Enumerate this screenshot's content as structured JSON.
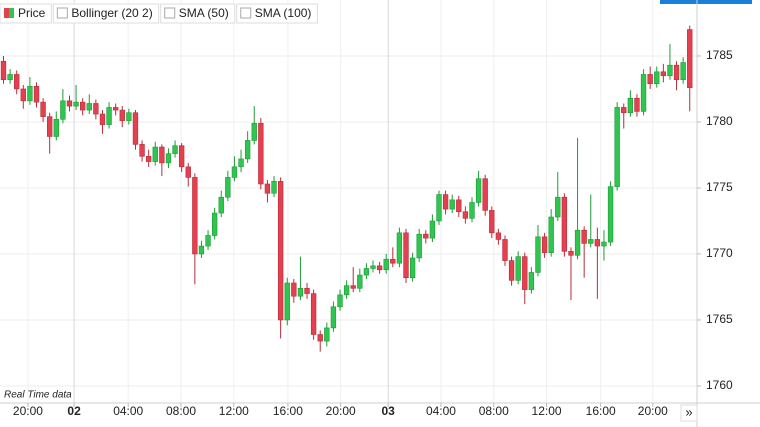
{
  "chart_data": {
    "type": "candlestick",
    "legend": [
      "Price",
      "Bollinger (20 2)",
      "SMA (50)",
      "SMA (100)"
    ],
    "annotation": "Real Time data",
    "scroll_button": "»",
    "up_color": "#2fc54f",
    "down_color": "#e5404f",
    "series": [
      {
        "name": "Price",
        "open": [
          1784.6,
          1783.2,
          1783.6,
          1782.5,
          1781.6,
          1782.7,
          1781.5,
          1780.4,
          1778.9,
          1780.2,
          1781.6,
          1781.2,
          1781.5,
          1780.9,
          1781.4,
          1780.6,
          1779.8,
          1781.1,
          1780.9,
          1780.1,
          1780.7,
          1778.3,
          1777.4,
          1777.0,
          1778.1,
          1776.9,
          1777.6,
          1778.2,
          1776.6,
          1775.8,
          1770.0,
          1770.6,
          1771.4,
          1773.1,
          1774.3,
          1775.8,
          1776.6,
          1777.2,
          1778.6,
          1779.9,
          1775.3,
          1774.6,
          1775.5,
          1765.0,
          1767.8,
          1766.8,
          1767.4,
          1767.0,
          1763.9,
          1763.4,
          1764.4,
          1766.0,
          1766.9,
          1767.6,
          1767.4,
          1768.4,
          1768.9,
          1769.1,
          1768.8,
          1769.6,
          1769.3,
          1771.6,
          1768.2,
          1769.7,
          1771.5,
          1771.2,
          1772.5,
          1774.5,
          1773.4,
          1774.1,
          1773.2,
          1772.7,
          1773.9,
          1775.7,
          1773.3,
          1771.6,
          1771.1,
          1769.5,
          1768.0,
          1769.8,
          1767.3,
          1768.6,
          1771.3,
          1770.1,
          1772.8,
          1774.3,
          1770.2,
          1769.9,
          1771.8,
          1770.8,
          1771.1,
          1770.6,
          1770.9,
          1775.1,
          1781.1,
          1780.7,
          1781.8,
          1780.8,
          1783.6,
          1782.9,
          1783.8,
          1783.5,
          1784.3,
          1783.2,
          1787.0
        ],
        "high": [
          1785.0,
          1784.0,
          1783.9,
          1782.8,
          1783.4,
          1783.0,
          1781.8,
          1780.7,
          1780.8,
          1782.5,
          1782.0,
          1782.8,
          1781.8,
          1782.1,
          1781.7,
          1780.9,
          1781.5,
          1781.4,
          1781.2,
          1781.0,
          1780.9,
          1778.6,
          1777.9,
          1778.5,
          1778.3,
          1778.0,
          1778.6,
          1778.4,
          1776.9,
          1776.1,
          1771.0,
          1771.8,
          1773.5,
          1774.8,
          1776.3,
          1777.4,
          1777.9,
          1779.3,
          1781.2,
          1780.3,
          1775.6,
          1775.9,
          1775.8,
          1768.2,
          1768.1,
          1769.8,
          1767.8,
          1767.3,
          1764.2,
          1764.8,
          1766.4,
          1767.3,
          1768.0,
          1769.0,
          1768.9,
          1769.3,
          1769.5,
          1769.4,
          1770.0,
          1770.5,
          1772.0,
          1771.9,
          1770.1,
          1771.9,
          1771.8,
          1773.0,
          1774.8,
          1774.8,
          1774.5,
          1774.4,
          1773.6,
          1774.3,
          1776.3,
          1776.0,
          1773.6,
          1771.9,
          1771.4,
          1769.8,
          1770.2,
          1770.1,
          1769.0,
          1772.2,
          1771.6,
          1773.4,
          1776.2,
          1774.6,
          1770.5,
          1778.8,
          1772.1,
          1774.5,
          1772.0,
          1771.8,
          1775.5,
          1781.5,
          1781.4,
          1782.4,
          1782.1,
          1784.0,
          1784.2,
          1784.2,
          1784.4,
          1785.9,
          1784.6,
          1784.9,
          1787.3
        ],
        "low": [
          1782.9,
          1782.9,
          1782.1,
          1781.0,
          1781.3,
          1781.1,
          1780.0,
          1777.6,
          1778.6,
          1779.9,
          1780.8,
          1780.9,
          1780.5,
          1780.6,
          1780.2,
          1779.1,
          1779.5,
          1780.5,
          1779.6,
          1779.8,
          1777.9,
          1777.0,
          1776.6,
          1776.7,
          1775.9,
          1776.5,
          1777.3,
          1776.2,
          1775.1,
          1767.7,
          1769.7,
          1770.3,
          1771.1,
          1772.8,
          1774.0,
          1775.5,
          1776.2,
          1776.9,
          1778.3,
          1774.9,
          1773.9,
          1774.3,
          1763.6,
          1764.6,
          1766.3,
          1766.5,
          1766.6,
          1763.5,
          1762.6,
          1763.0,
          1764.1,
          1765.7,
          1766.6,
          1767.1,
          1767.1,
          1768.1,
          1768.6,
          1768.5,
          1768.5,
          1769.0,
          1769.0,
          1767.8,
          1767.9,
          1769.4,
          1770.8,
          1770.9,
          1772.2,
          1773.0,
          1773.1,
          1772.8,
          1772.3,
          1772.4,
          1773.6,
          1772.9,
          1771.2,
          1770.7,
          1769.1,
          1767.6,
          1767.7,
          1766.2,
          1767.0,
          1768.3,
          1769.7,
          1769.8,
          1772.5,
          1769.8,
          1766.5,
          1769.6,
          1768.2,
          1770.5,
          1766.6,
          1769.5,
          1770.6,
          1774.8,
          1779.5,
          1780.4,
          1780.4,
          1780.5,
          1782.5,
          1782.6,
          1783.0,
          1783.2,
          1782.4,
          1782.9,
          1780.8
        ],
        "close": [
          1783.2,
          1783.6,
          1782.5,
          1781.6,
          1782.7,
          1781.5,
          1780.4,
          1778.9,
          1780.2,
          1781.6,
          1781.2,
          1781.5,
          1780.9,
          1781.4,
          1780.6,
          1779.8,
          1781.1,
          1780.9,
          1780.1,
          1780.7,
          1778.3,
          1777.4,
          1777.0,
          1778.1,
          1776.9,
          1777.6,
          1778.2,
          1776.6,
          1775.8,
          1770.0,
          1770.6,
          1771.4,
          1773.1,
          1774.3,
          1775.8,
          1776.6,
          1777.2,
          1778.6,
          1779.9,
          1775.3,
          1774.6,
          1775.5,
          1765.0,
          1767.8,
          1766.8,
          1767.4,
          1767.0,
          1763.9,
          1763.4,
          1764.4,
          1766.0,
          1766.9,
          1767.6,
          1767.4,
          1768.4,
          1768.9,
          1769.1,
          1768.8,
          1769.6,
          1769.3,
          1771.6,
          1768.2,
          1769.7,
          1771.5,
          1771.2,
          1772.5,
          1774.5,
          1773.4,
          1774.1,
          1773.2,
          1772.7,
          1773.9,
          1775.7,
          1773.3,
          1771.6,
          1771.1,
          1769.5,
          1768.0,
          1769.8,
          1767.3,
          1768.6,
          1771.3,
          1770.1,
          1772.8,
          1774.3,
          1770.2,
          1769.9,
          1771.8,
          1770.8,
          1771.1,
          1770.6,
          1770.9,
          1775.1,
          1781.1,
          1780.7,
          1781.8,
          1780.8,
          1783.6,
          1782.9,
          1783.8,
          1783.5,
          1784.3,
          1783.2,
          1784.5,
          1782.6
        ]
      }
    ],
    "xlim": [
      -0.53,
      105.1
    ],
    "xticks": [
      {
        "value": 3.7,
        "label": "20:00"
      },
      {
        "value": 10.7,
        "label": "02"
      },
      {
        "value": 18.9,
        "label": "04:00"
      },
      {
        "value": 26.9,
        "label": "08:00"
      },
      {
        "value": 34.9,
        "label": "12:00"
      },
      {
        "value": 43.1,
        "label": "16:00"
      },
      {
        "value": 51.1,
        "label": "20:00"
      },
      {
        "value": 58.3,
        "label": "03"
      },
      {
        "value": 66.3,
        "label": "04:00"
      },
      {
        "value": 74.3,
        "label": "08:00"
      },
      {
        "value": 82.3,
        "label": "12:00"
      },
      {
        "value": 90.5,
        "label": "16:00"
      },
      {
        "value": 98.4,
        "label": "20:00"
      }
    ],
    "ylim": [
      1758.71,
      1788.86
    ],
    "yticks": [
      1760,
      1765,
      1770,
      1775,
      1780,
      1785
    ],
    "grid": true
  }
}
